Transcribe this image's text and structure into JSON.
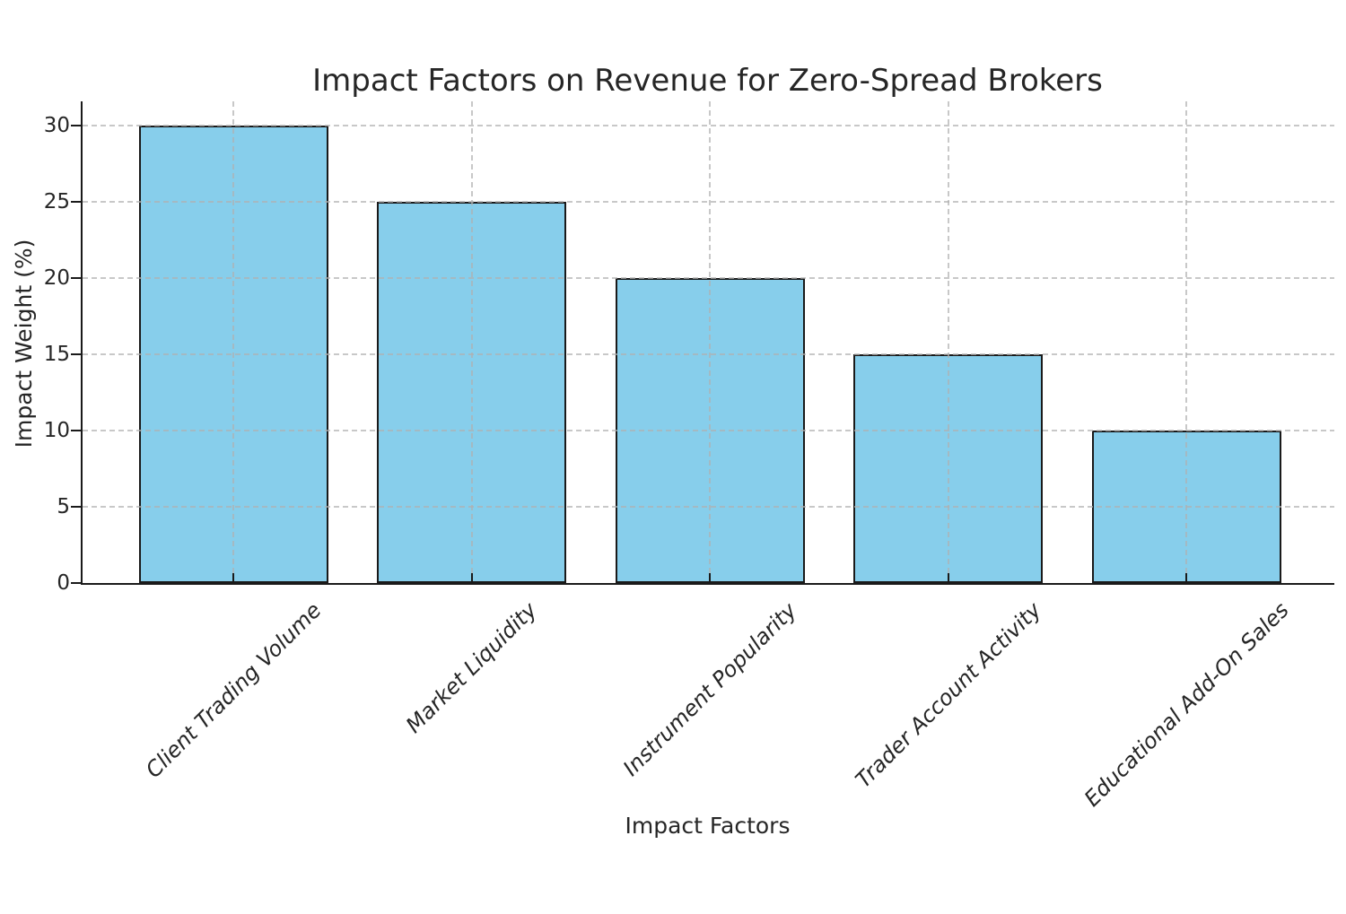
{
  "chart_data": {
    "type": "bar",
    "title": "Impact Factors on Revenue for Zero-Spread Brokers",
    "xlabel": "Impact Factors",
    "ylabel": "Impact Weight (%)",
    "categories": [
      "Client Trading Volume",
      "Market Liquidity",
      "Instrument Popularity",
      "Trader Account Activity",
      "Educational Add-On Sales"
    ],
    "values": [
      30,
      25,
      20,
      15,
      10
    ],
    "yticks": [
      0,
      5,
      10,
      15,
      20,
      25,
      30
    ],
    "ylim": [
      0,
      31.6
    ],
    "grid": true,
    "grid_style": "dashed",
    "x_tick_rotation": 45,
    "legend": "none",
    "colors": {
      "bar_fill": "#87CEEB",
      "bar_edge": "#1a1a1a",
      "grid": "rgba(176,176,176,0.7)",
      "axis": "#1a1a1a",
      "text": "#262626",
      "background": "#ffffff"
    }
  }
}
